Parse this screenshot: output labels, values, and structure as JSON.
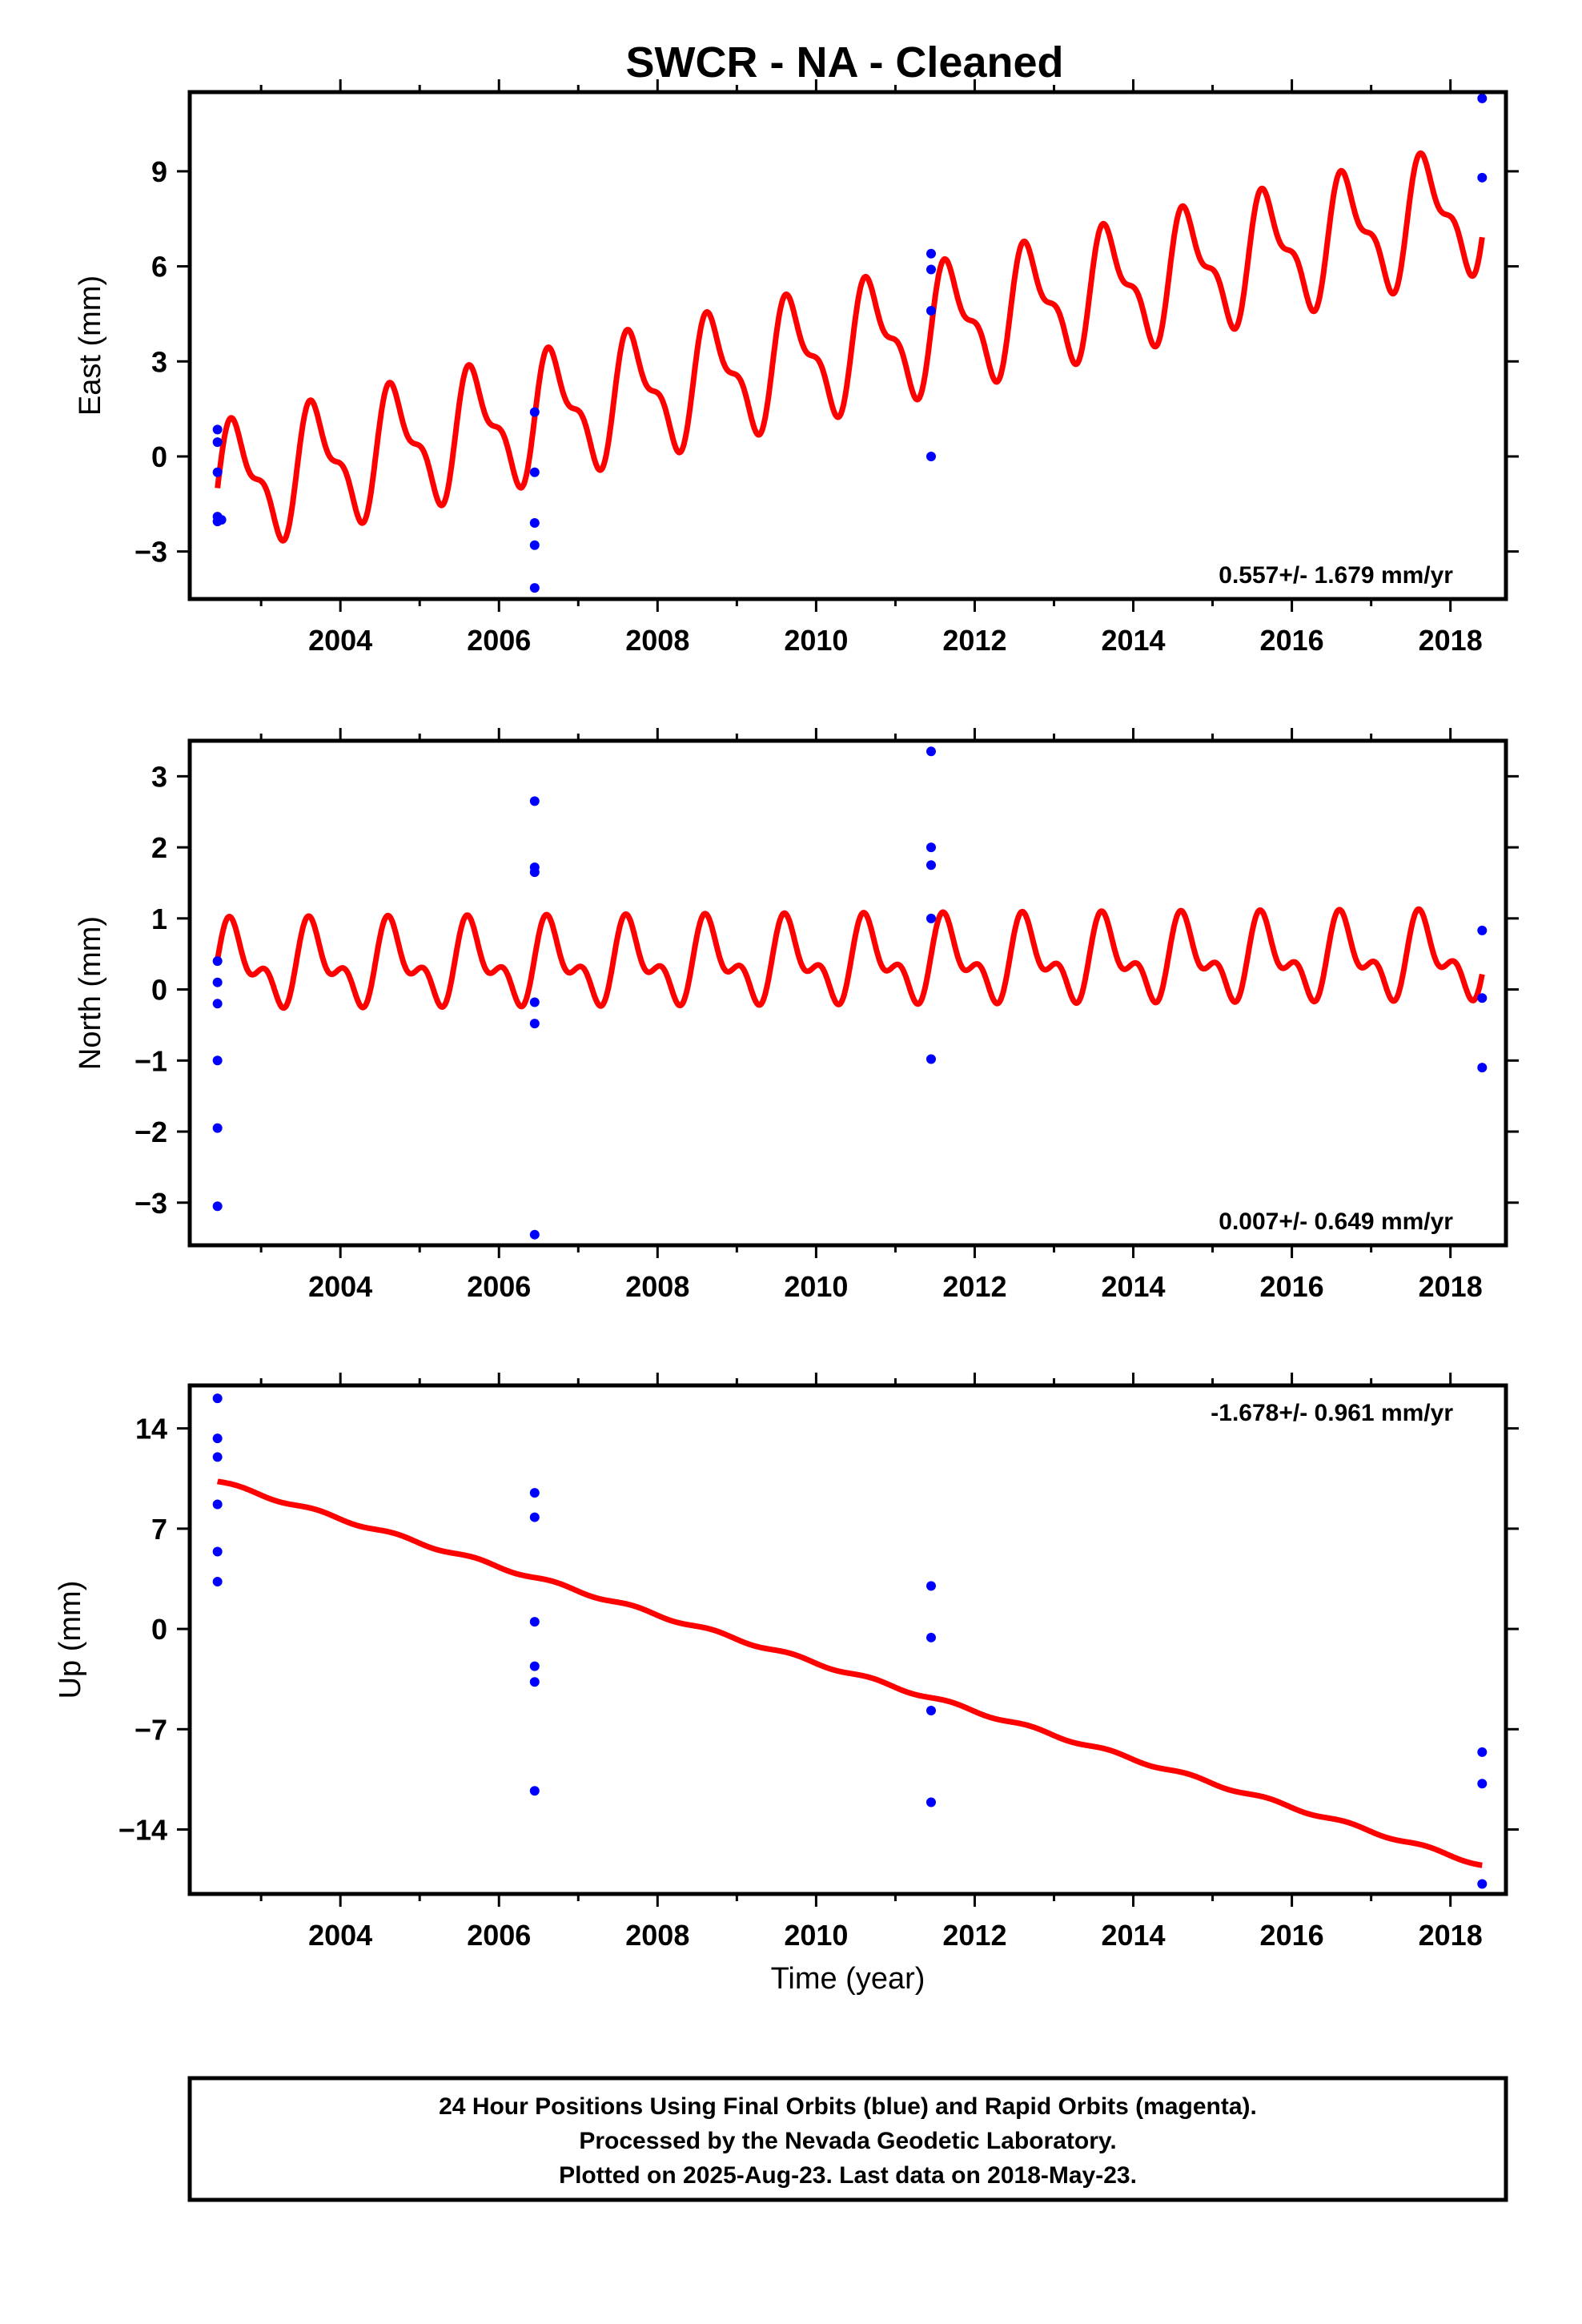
{
  "title": "SWCR  - NA - Cleaned",
  "colors": {
    "model": "#ff0000",
    "final_orbits": "#0000ff",
    "frame": "#000000"
  },
  "chart_data": [
    {
      "type": "scatter",
      "name": "east",
      "ylabel": "East (mm)",
      "xlabel": "",
      "xlim": [
        2002.1,
        2018.7
      ],
      "ylim": [
        -4.5,
        11.5
      ],
      "xticks": [
        2004,
        2006,
        2008,
        2010,
        2012,
        2014,
        2016,
        2018
      ],
      "xtick_labels": [
        "2004",
        "2006",
        "2008",
        "2010",
        "2012",
        "2014",
        "2016",
        "2018"
      ],
      "yticks": [
        -3,
        0,
        3,
        6,
        9
      ],
      "ytick_labels": [
        "−3",
        "0",
        "3",
        "6",
        "9"
      ],
      "rate_text": "0.557+/- 1.679 mm/yr",
      "rate_position": "bottom-right",
      "model": {
        "x0": 2002.45,
        "x1": 2018.4,
        "intercept": -1.0,
        "slope": 0.557,
        "annual_amp": 1.7,
        "semiannual_amp": 0.75,
        "annual_phase": 0.0,
        "semiannual_phase": 0.0
      },
      "points": [
        {
          "x": 2002.45,
          "y": 0.85
        },
        {
          "x": 2002.45,
          "y": 0.45
        },
        {
          "x": 2002.45,
          "y": -0.5
        },
        {
          "x": 2002.45,
          "y": -1.9
        },
        {
          "x": 2002.45,
          "y": -2.05
        },
        {
          "x": 2002.5,
          "y": -2.0
        },
        {
          "x": 2006.45,
          "y": 1.4
        },
        {
          "x": 2006.45,
          "y": -0.5
        },
        {
          "x": 2006.45,
          "y": -2.1
        },
        {
          "x": 2006.45,
          "y": -2.8
        },
        {
          "x": 2006.45,
          "y": -4.15
        },
        {
          "x": 2011.45,
          "y": 6.4
        },
        {
          "x": 2011.45,
          "y": 5.9
        },
        {
          "x": 2011.45,
          "y": 4.6
        },
        {
          "x": 2011.45,
          "y": 0.0
        },
        {
          "x": 2018.4,
          "y": 11.3
        },
        {
          "x": 2018.4,
          "y": 8.8
        }
      ]
    },
    {
      "type": "scatter",
      "name": "north",
      "ylabel": "North (mm)",
      "xlabel": "",
      "xlim": [
        2002.1,
        2018.7
      ],
      "ylim": [
        -3.6,
        3.5
      ],
      "xticks": [
        2004,
        2006,
        2008,
        2010,
        2012,
        2014,
        2016,
        2018
      ],
      "xtick_labels": [
        "2004",
        "2006",
        "2008",
        "2010",
        "2012",
        "2014",
        "2016",
        "2018"
      ],
      "yticks": [
        -3,
        -2,
        -1,
        0,
        1,
        2,
        3
      ],
      "ytick_labels": [
        "−3",
        "−2",
        "−1",
        "0",
        "1",
        "2",
        "3"
      ],
      "rate_text": "0.007+/- 0.649 mm/yr",
      "rate_position": "bottom-right",
      "model": {
        "x0": 2002.45,
        "x1": 2018.4,
        "intercept": 0.33,
        "slope": 0.007,
        "annual_amp": 0.45,
        "semiannual_amp": 0.3,
        "annual_phase": 0.2,
        "semiannual_phase": 0.0
      },
      "points": [
        {
          "x": 2002.45,
          "y": 0.4
        },
        {
          "x": 2002.45,
          "y": 0.1
        },
        {
          "x": 2002.45,
          "y": -0.2
        },
        {
          "x": 2002.45,
          "y": -1.0
        },
        {
          "x": 2002.45,
          "y": -1.95
        },
        {
          "x": 2002.45,
          "y": -3.05
        },
        {
          "x": 2006.45,
          "y": 2.65
        },
        {
          "x": 2006.45,
          "y": 1.72
        },
        {
          "x": 2006.45,
          "y": 1.65
        },
        {
          "x": 2006.45,
          "y": -0.18
        },
        {
          "x": 2006.45,
          "y": -0.48
        },
        {
          "x": 2006.45,
          "y": -3.45
        },
        {
          "x": 2011.45,
          "y": 3.35
        },
        {
          "x": 2011.45,
          "y": 2.0
        },
        {
          "x": 2011.45,
          "y": 1.75
        },
        {
          "x": 2011.45,
          "y": 1.0
        },
        {
          "x": 2011.45,
          "y": -0.98
        },
        {
          "x": 2018.4,
          "y": 0.83
        },
        {
          "x": 2018.4,
          "y": -0.12
        },
        {
          "x": 2018.4,
          "y": -1.1
        }
      ]
    },
    {
      "type": "scatter",
      "name": "up",
      "ylabel": "Up (mm)",
      "xlabel": "Time (year)",
      "xlim": [
        2002.1,
        2018.7
      ],
      "ylim": [
        -18.5,
        17.0
      ],
      "xticks": [
        2004,
        2006,
        2008,
        2010,
        2012,
        2014,
        2016,
        2018
      ],
      "xtick_labels": [
        "2004",
        "2006",
        "2008",
        "2010",
        "2012",
        "2014",
        "2016",
        "2018"
      ],
      "yticks": [
        -14,
        -7,
        0,
        7,
        14
      ],
      "ytick_labels": [
        "−14",
        "−7",
        "0",
        "7",
        "14"
      ],
      "rate_text": "-1.678+/- 0.961 mm/yr",
      "rate_position": "top-right",
      "model": {
        "x0": 2002.45,
        "x1": 2018.4,
        "intercept": 10.3,
        "slope": -1.678,
        "annual_amp": 0.12,
        "semiannual_amp": 0.0,
        "annual_phase": 0.0,
        "semiannual_phase": 0.0
      },
      "points": [
        {
          "x": 2002.45,
          "y": 16.1
        },
        {
          "x": 2002.45,
          "y": 13.3
        },
        {
          "x": 2002.45,
          "y": 12.0
        },
        {
          "x": 2002.45,
          "y": 8.7
        },
        {
          "x": 2002.45,
          "y": 5.4
        },
        {
          "x": 2002.45,
          "y": 3.3
        },
        {
          "x": 2006.45,
          "y": 9.5
        },
        {
          "x": 2006.45,
          "y": 7.8
        },
        {
          "x": 2006.45,
          "y": 0.5
        },
        {
          "x": 2006.45,
          "y": -2.6
        },
        {
          "x": 2006.45,
          "y": -3.7
        },
        {
          "x": 2006.45,
          "y": -11.3
        },
        {
          "x": 2011.45,
          "y": 3.0
        },
        {
          "x": 2011.45,
          "y": -0.6
        },
        {
          "x": 2011.45,
          "y": -5.7
        },
        {
          "x": 2011.45,
          "y": -12.1
        },
        {
          "x": 2018.4,
          "y": -8.6
        },
        {
          "x": 2018.4,
          "y": -10.8
        },
        {
          "x": 2018.4,
          "y": -17.8
        }
      ]
    }
  ],
  "footer": {
    "line1": "24 Hour Positions Using Final Orbits (blue) and Rapid Orbits (magenta).",
    "line2": "Processed by the Nevada Geodetic Laboratory.",
    "line3": "Plotted on 2025-Aug-23. Last data on 2018-May-23."
  }
}
